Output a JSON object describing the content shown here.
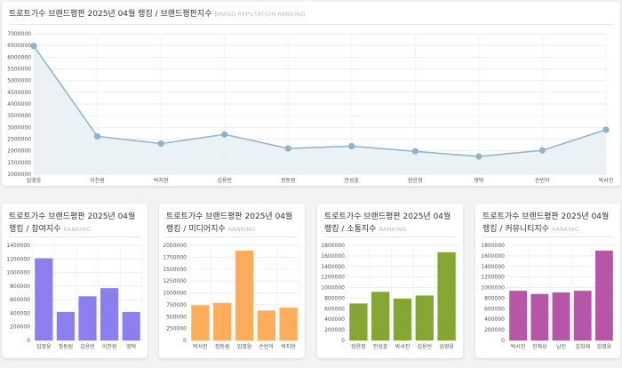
{
  "main": {
    "title": "트로트가수 브랜드평판 2025년 04월 랭킹 / 브랜드평판지수",
    "subtitle": "BRAND REPUTATION RANKING",
    "line_color": "#8fb3c8",
    "fill_color": "#e6eff4"
  },
  "small_cards": [
    {
      "title": "트로트가수 브랜드평판 2025년 04월 랭킹 / 참여지수",
      "subtitle": "RANKING",
      "color": "#8b7ff0"
    },
    {
      "title": "트로트가수 브랜드평판 2025년 04월 랭킹 / 미디어지수",
      "subtitle": "RANKING",
      "color": "#ffad5c"
    },
    {
      "title": "트로트가수 브랜드평판 2025년 04월 랭킹 / 소통지수",
      "subtitle": "RANKING",
      "color": "#86a634"
    },
    {
      "title": "트로트가수 브랜드평판 2025년 04월 랭킹 / 커뮤니티지수",
      "subtitle": "RANKING",
      "color": "#b756a8"
    }
  ],
  "chart_data": [
    {
      "type": "area",
      "x": [
        "임영웅",
        "이찬원",
        "박지현",
        "김용빈",
        "정동원",
        "안성훈",
        "장윤정",
        "영탁",
        "손빈아",
        "박서진"
      ],
      "values": [
        6480000,
        2620000,
        2310000,
        2700000,
        2100000,
        2200000,
        1980000,
        1760000,
        2020000,
        2900000
      ],
      "ylim": [
        1000000,
        7000000
      ],
      "yticks": [
        1000000,
        1500000,
        2000000,
        2500000,
        3000000,
        3500000,
        4000000,
        4500000,
        5000000,
        5500000,
        6000000,
        6500000,
        7000000
      ],
      "grid": true
    },
    {
      "type": "bar",
      "categories": [
        "임영웅",
        "정동원",
        "김용빈",
        "이찬원",
        "영탁"
      ],
      "values": [
        1210000,
        420000,
        650000,
        770000,
        420000
      ],
      "ylim": [
        0,
        1400000
      ],
      "yticks": [
        0,
        200000,
        400000,
        600000,
        800000,
        1000000,
        1200000,
        1400000
      ],
      "grid": true
    },
    {
      "type": "bar",
      "categories": [
        "박서진",
        "정동원",
        "임영웅",
        "손빈아",
        "박지현"
      ],
      "values": [
        740000,
        790000,
        1890000,
        630000,
        690000
      ],
      "ylim": [
        0,
        2000000
      ],
      "yticks": [
        0,
        250000,
        500000,
        750000,
        1000000,
        1250000,
        1500000,
        1750000,
        2000000
      ],
      "grid": true
    },
    {
      "type": "bar",
      "categories": [
        "장윤정",
        "안성훈",
        "박서진",
        "김용빈",
        "임영웅"
      ],
      "values": [
        700000,
        920000,
        790000,
        850000,
        1670000
      ],
      "ylim": [
        0,
        1800000
      ],
      "yticks": [
        0,
        200000,
        400000,
        600000,
        800000,
        1000000,
        1200000,
        1400000,
        1600000,
        1800000
      ],
      "grid": true
    },
    {
      "type": "bar",
      "categories": [
        "박서진",
        "진해성",
        "남진",
        "김희재",
        "임영웅"
      ],
      "values": [
        940000,
        880000,
        910000,
        940000,
        1700000
      ],
      "ylim": [
        0,
        1800000
      ],
      "yticks": [
        0,
        200000,
        400000,
        600000,
        800000,
        1000000,
        1200000,
        1400000,
        1600000,
        1800000
      ],
      "grid": true
    }
  ]
}
